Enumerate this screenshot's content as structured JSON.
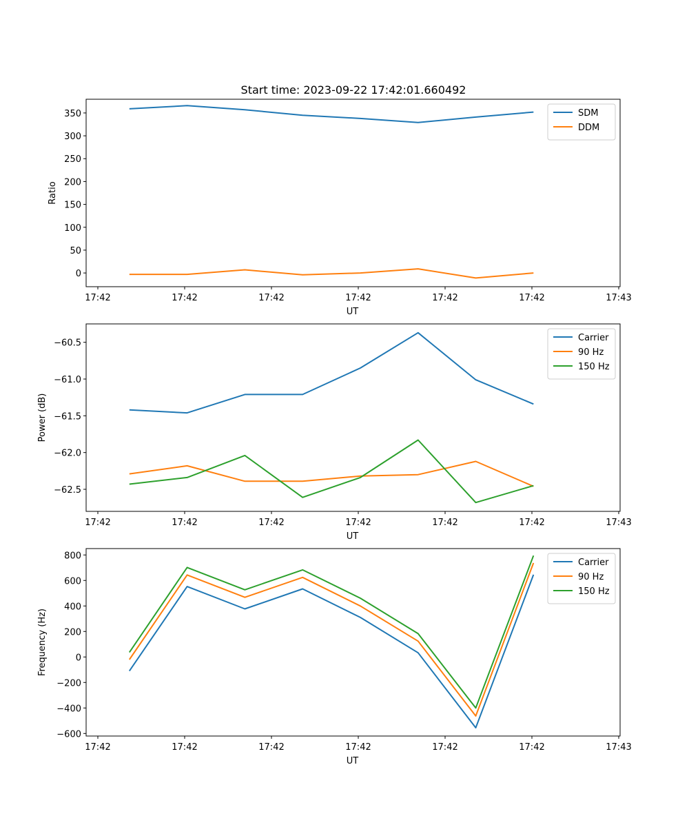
{
  "figure": {
    "title": "Start time: 2023-09-22 17:42:01.660492"
  },
  "chart_data": [
    {
      "type": "line",
      "title": "Start time: 2023-09-22 17:42:01.660492",
      "xlabel": "UT",
      "ylabel": "Ratio",
      "x_ticks": [
        "17:42",
        "17:42",
        "17:42",
        "17:42",
        "17:42",
        "17:42",
        "17:43"
      ],
      "x": [
        1,
        2,
        3,
        4,
        5,
        6,
        7,
        8
      ],
      "xlim": [
        0.25,
        9.5
      ],
      "ylim": [
        -30,
        380
      ],
      "y_ticks": [
        0,
        50,
        100,
        150,
        200,
        250,
        300,
        350
      ],
      "y_tick_labels": [
        "0",
        "50",
        "100",
        "150",
        "200",
        "250",
        "300",
        "350"
      ],
      "legend_position": "top-right",
      "series": [
        {
          "name": "SDM",
          "color": "#1f77b4",
          "values": [
            359,
            366,
            357,
            345,
            338,
            329,
            341,
            352
          ]
        },
        {
          "name": "DDM",
          "color": "#ff7f0e",
          "values": [
            -3,
            -3,
            7,
            -4,
            0,
            9,
            -11,
            0
          ]
        }
      ]
    },
    {
      "type": "line",
      "title": "",
      "xlabel": "UT",
      "ylabel": "Power (dB)",
      "x_ticks": [
        "17:42",
        "17:42",
        "17:42",
        "17:42",
        "17:42",
        "17:42",
        "17:43"
      ],
      "x": [
        1,
        2,
        3,
        4,
        5,
        6,
        7,
        8
      ],
      "xlim": [
        0.25,
        9.5
      ],
      "ylim": [
        -62.8,
        -60.25
      ],
      "y_ticks": [
        -62.5,
        -62.0,
        -61.5,
        -61.0,
        -60.5
      ],
      "y_tick_labels": [
        "−62.5",
        "−62.0",
        "−61.5",
        "−61.0",
        "−60.5"
      ],
      "legend_position": "top-right",
      "series": [
        {
          "name": "Carrier",
          "color": "#1f77b4",
          "values": [
            -61.42,
            -61.46,
            -61.21,
            -61.21,
            -60.85,
            -60.37,
            -61.01,
            -61.34
          ]
        },
        {
          "name": "90 Hz",
          "color": "#ff7f0e",
          "values": [
            -62.29,
            -62.18,
            -62.39,
            -62.39,
            -62.32,
            -62.3,
            -62.12,
            -62.46
          ]
        },
        {
          "name": "150 Hz",
          "color": "#2ca02c",
          "values": [
            -62.43,
            -62.34,
            -62.04,
            -62.61,
            -62.34,
            -61.83,
            -62.68,
            -62.45
          ]
        }
      ]
    },
    {
      "type": "line",
      "title": "",
      "xlabel": "UT",
      "ylabel": "Frequency (Hz)",
      "x_ticks": [
        "17:42",
        "17:42",
        "17:42",
        "17:42",
        "17:42",
        "17:42",
        "17:43"
      ],
      "x": [
        1,
        2,
        3,
        4,
        5,
        6,
        7,
        8
      ],
      "xlim": [
        0.25,
        9.5
      ],
      "ylim": [
        -620,
        850
      ],
      "y_ticks": [
        -600,
        -400,
        -200,
        0,
        200,
        400,
        600,
        800
      ],
      "y_tick_labels": [
        "−600",
        "−400",
        "−200",
        "0",
        "200",
        "400",
        "600",
        "800"
      ],
      "legend_position": "top-right",
      "series": [
        {
          "name": "Carrier",
          "color": "#1f77b4",
          "values": [
            -110,
            552,
            377,
            534,
            310,
            33,
            -555,
            645
          ]
        },
        {
          "name": "90 Hz",
          "color": "#ff7f0e",
          "values": [
            -20,
            643,
            468,
            624,
            400,
            124,
            -463,
            737
          ]
        },
        {
          "name": "150 Hz",
          "color": "#2ca02c",
          "values": [
            36,
            702,
            527,
            683,
            461,
            183,
            -400,
            795
          ]
        }
      ]
    }
  ]
}
